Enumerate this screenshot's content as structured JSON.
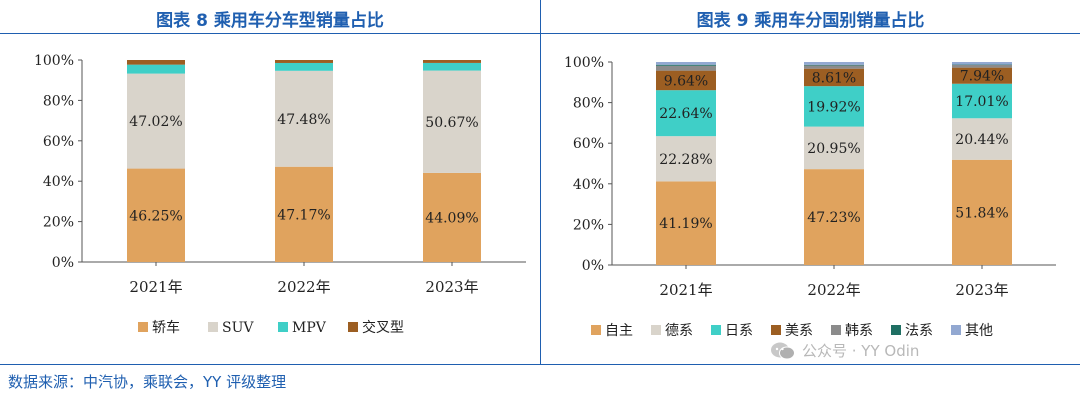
{
  "source": "数据来源：中汽协，乘联会，YY 评级整理",
  "watermark": "公众号 · YY Odin",
  "watermark_icon": "wechat-icon",
  "chart_data": [
    {
      "type": "bar",
      "stacked": true,
      "title": "图表 8 乘用车分车型销量占比",
      "categories": [
        "2021年",
        "2022年",
        "2023年"
      ],
      "ylim": [
        0,
        100
      ],
      "yticks": [
        "0%",
        "20%",
        "40%",
        "60%",
        "80%",
        "100%"
      ],
      "series": [
        {
          "name": "轿车",
          "color": "#e0a35e",
          "values": [
            46.25,
            47.17,
            44.09
          ],
          "labels": [
            "46.25%",
            "47.17%",
            "44.09%"
          ]
        },
        {
          "name": "SUV",
          "color": "#d9d4cb",
          "values": [
            47.02,
            47.48,
            50.67
          ],
          "labels": [
            "47.02%",
            "47.48%",
            "50.67%"
          ]
        },
        {
          "name": "MPV",
          "color": "#3fcfc7",
          "values": [
            4.43,
            3.88,
            3.79
          ],
          "labels": [
            "",
            "",
            ""
          ]
        },
        {
          "name": "交叉型",
          "color": "#9c5e22",
          "values": [
            2.3,
            1.47,
            1.45
          ],
          "labels": [
            "",
            "",
            ""
          ]
        }
      ]
    },
    {
      "type": "bar",
      "stacked": true,
      "title": "图表 9 乘用车分国别销量占比",
      "categories": [
        "2021年",
        "2022年",
        "2023年"
      ],
      "ylim": [
        0,
        100
      ],
      "yticks": [
        "0%",
        "20%",
        "40%",
        "60%",
        "80%",
        "100%"
      ],
      "series": [
        {
          "name": "自主",
          "color": "#e0a35e",
          "values": [
            41.19,
            47.23,
            51.84
          ],
          "labels": [
            "41.19%",
            "47.23%",
            "51.84%"
          ]
        },
        {
          "name": "德系",
          "color": "#d9d4cb",
          "values": [
            22.28,
            20.95,
            20.44
          ],
          "labels": [
            "22.28%",
            "20.95%",
            "20.44%"
          ]
        },
        {
          "name": "日系",
          "color": "#3fcfc7",
          "values": [
            22.64,
            19.92,
            17.01
          ],
          "labels": [
            "22.64%",
            "19.92%",
            "17.01%"
          ]
        },
        {
          "name": "美系",
          "color": "#9c5e22",
          "values": [
            9.64,
            8.61,
            7.94
          ],
          "labels": [
            "9.64%",
            "8.61%",
            "7.94%"
          ]
        },
        {
          "name": "韩系",
          "color": "#8b8b8b",
          "values": [
            2.4,
            1.6,
            1.3
          ],
          "labels": [
            "",
            "",
            ""
          ]
        },
        {
          "name": "法系",
          "color": "#1f6f63",
          "values": [
            0.5,
            0.3,
            0.2
          ],
          "labels": [
            "",
            "",
            ""
          ]
        },
        {
          "name": "其他",
          "color": "#92a8d1",
          "values": [
            1.35,
            1.39,
            1.27
          ],
          "labels": [
            "",
            "",
            ""
          ]
        }
      ]
    }
  ]
}
